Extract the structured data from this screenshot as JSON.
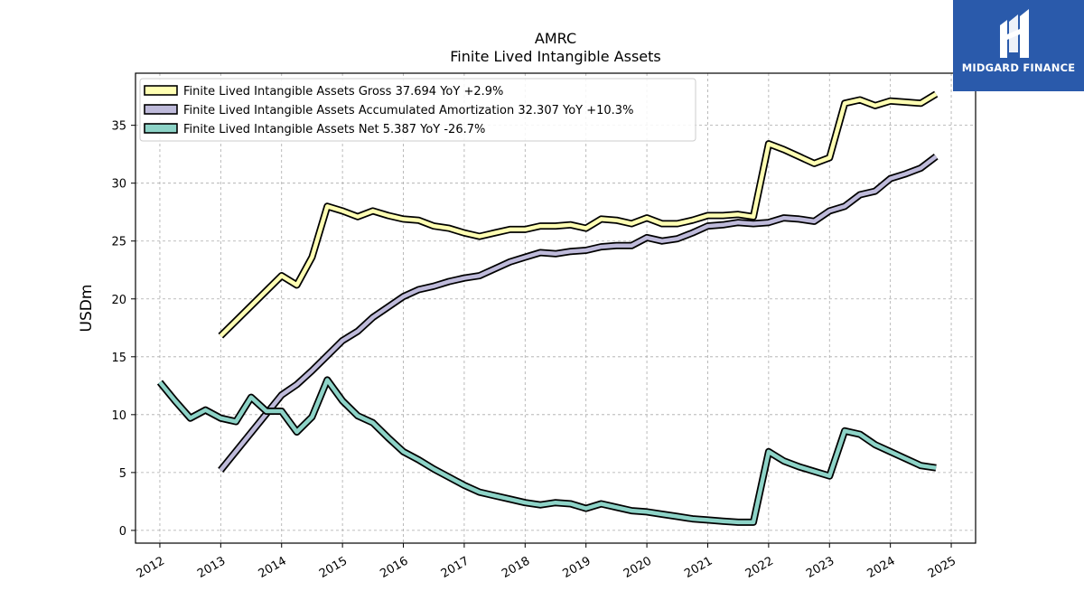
{
  "chart_data": {
    "type": "line",
    "title": "AMRC",
    "subtitle": "Finite Lived Intangible Assets",
    "ylabel": "USDm",
    "ylim": [
      -1.1,
      39.5
    ],
    "xlim": [
      2011.6,
      2025.4
    ],
    "yticks": [
      0,
      5,
      10,
      15,
      20,
      25,
      30,
      35
    ],
    "xticks": [
      2012,
      2013,
      2014,
      2015,
      2016,
      2017,
      2018,
      2019,
      2020,
      2021,
      2022,
      2023,
      2024,
      2025
    ],
    "grid": true,
    "legend_position": "top-left",
    "series": [
      {
        "name": "Finite Lived Intangible Assets Gross  37.694 YoY +2.9%",
        "color": "#ffffb3",
        "points": [
          [
            2013.0,
            16.8
          ],
          [
            2014.0,
            22.0
          ],
          [
            2014.25,
            21.2
          ],
          [
            2014.5,
            23.6
          ],
          [
            2014.75,
            28.0
          ],
          [
            2015.0,
            27.6
          ],
          [
            2015.25,
            27.1
          ],
          [
            2015.5,
            27.6
          ],
          [
            2015.75,
            27.2
          ],
          [
            2016.0,
            26.9
          ],
          [
            2016.25,
            26.8
          ],
          [
            2016.5,
            26.3
          ],
          [
            2016.75,
            26.1
          ],
          [
            2017.0,
            25.7
          ],
          [
            2017.25,
            25.4
          ],
          [
            2017.5,
            25.7
          ],
          [
            2017.75,
            26.0
          ],
          [
            2018.0,
            26.0
          ],
          [
            2018.25,
            26.3
          ],
          [
            2018.5,
            26.3
          ],
          [
            2018.75,
            26.4
          ],
          [
            2019.0,
            26.1
          ],
          [
            2019.25,
            26.9
          ],
          [
            2019.5,
            26.8
          ],
          [
            2019.75,
            26.5
          ],
          [
            2020.0,
            27.0
          ],
          [
            2020.25,
            26.5
          ],
          [
            2020.5,
            26.5
          ],
          [
            2020.75,
            26.8
          ],
          [
            2021.0,
            27.2
          ],
          [
            2021.25,
            27.2
          ],
          [
            2021.5,
            27.3
          ],
          [
            2021.75,
            27.1
          ],
          [
            2022.0,
            33.4
          ],
          [
            2022.25,
            32.9
          ],
          [
            2022.5,
            32.3
          ],
          [
            2022.75,
            31.7
          ],
          [
            2023.0,
            32.2
          ],
          [
            2023.25,
            36.9
          ],
          [
            2023.5,
            37.2
          ],
          [
            2023.75,
            36.7
          ],
          [
            2024.0,
            37.1
          ],
          [
            2024.25,
            37.0
          ],
          [
            2024.5,
            36.9
          ],
          [
            2024.75,
            37.7
          ]
        ]
      },
      {
        "name": "Finite Lived Intangible Assets Accumulated Amortization  32.307 YoY +10.3%",
        "color": "#bebada",
        "points": [
          [
            2013.0,
            5.2
          ],
          [
            2014.0,
            11.7
          ],
          [
            2014.25,
            12.6
          ],
          [
            2014.5,
            13.8
          ],
          [
            2014.75,
            15.1
          ],
          [
            2015.0,
            16.4
          ],
          [
            2015.25,
            17.2
          ],
          [
            2015.5,
            18.4
          ],
          [
            2015.75,
            19.3
          ],
          [
            2016.0,
            20.2
          ],
          [
            2016.25,
            20.8
          ],
          [
            2016.5,
            21.1
          ],
          [
            2016.75,
            21.5
          ],
          [
            2017.0,
            21.8
          ],
          [
            2017.25,
            22.0
          ],
          [
            2017.5,
            22.6
          ],
          [
            2017.75,
            23.2
          ],
          [
            2018.0,
            23.6
          ],
          [
            2018.25,
            24.0
          ],
          [
            2018.5,
            23.9
          ],
          [
            2018.75,
            24.1
          ],
          [
            2019.0,
            24.2
          ],
          [
            2019.25,
            24.5
          ],
          [
            2019.5,
            24.6
          ],
          [
            2019.75,
            24.6
          ],
          [
            2020.0,
            25.3
          ],
          [
            2020.25,
            25.0
          ],
          [
            2020.5,
            25.2
          ],
          [
            2020.75,
            25.7
          ],
          [
            2021.0,
            26.3
          ],
          [
            2021.25,
            26.4
          ],
          [
            2021.5,
            26.6
          ],
          [
            2021.75,
            26.5
          ],
          [
            2022.0,
            26.6
          ],
          [
            2022.25,
            27.0
          ],
          [
            2022.5,
            26.9
          ],
          [
            2022.75,
            26.7
          ],
          [
            2023.0,
            27.6
          ],
          [
            2023.25,
            28.0
          ],
          [
            2023.5,
            29.0
          ],
          [
            2023.75,
            29.3
          ],
          [
            2024.0,
            30.4
          ],
          [
            2024.25,
            30.8
          ],
          [
            2024.5,
            31.3
          ],
          [
            2024.75,
            32.3
          ]
        ]
      },
      {
        "name": "Finite Lived Intangible Assets Net  5.387 YoY -26.7%",
        "color": "#8dd3c7",
        "points": [
          [
            2012.0,
            12.8
          ],
          [
            2012.25,
            11.2
          ],
          [
            2012.5,
            9.7
          ],
          [
            2012.75,
            10.4
          ],
          [
            2013.0,
            9.7
          ],
          [
            2013.25,
            9.4
          ],
          [
            2013.5,
            11.5
          ],
          [
            2013.75,
            10.3
          ],
          [
            2014.0,
            10.3
          ],
          [
            2014.25,
            8.5
          ],
          [
            2014.5,
            9.8
          ],
          [
            2014.75,
            13.0
          ],
          [
            2015.0,
            11.2
          ],
          [
            2015.25,
            9.9
          ],
          [
            2015.5,
            9.3
          ],
          [
            2015.75,
            8.0
          ],
          [
            2016.0,
            6.8
          ],
          [
            2016.25,
            6.1
          ],
          [
            2016.5,
            5.3
          ],
          [
            2016.75,
            4.6
          ],
          [
            2017.0,
            3.9
          ],
          [
            2017.25,
            3.3
          ],
          [
            2017.5,
            3.0
          ],
          [
            2017.75,
            2.7
          ],
          [
            2018.0,
            2.4
          ],
          [
            2018.25,
            2.2
          ],
          [
            2018.5,
            2.4
          ],
          [
            2018.75,
            2.3
          ],
          [
            2019.0,
            1.9
          ],
          [
            2019.25,
            2.3
          ],
          [
            2019.5,
            2.0
          ],
          [
            2019.75,
            1.7
          ],
          [
            2020.0,
            1.6
          ],
          [
            2020.25,
            1.4
          ],
          [
            2020.5,
            1.2
          ],
          [
            2020.75,
            1.0
          ],
          [
            2021.0,
            0.9
          ],
          [
            2021.25,
            0.8
          ],
          [
            2021.5,
            0.7
          ],
          [
            2021.75,
            0.7
          ],
          [
            2022.0,
            6.8
          ],
          [
            2022.25,
            6.0
          ],
          [
            2022.5,
            5.5
          ],
          [
            2022.75,
            5.1
          ],
          [
            2023.0,
            4.7
          ],
          [
            2023.25,
            8.6
          ],
          [
            2023.5,
            8.3
          ],
          [
            2023.75,
            7.4
          ],
          [
            2024.0,
            6.8
          ],
          [
            2024.25,
            6.2
          ],
          [
            2024.5,
            5.6
          ],
          [
            2024.75,
            5.4
          ]
        ]
      }
    ]
  },
  "branding": {
    "logo_text": "MIDGARD FINANCE",
    "logo_color": "#2a5aab"
  }
}
